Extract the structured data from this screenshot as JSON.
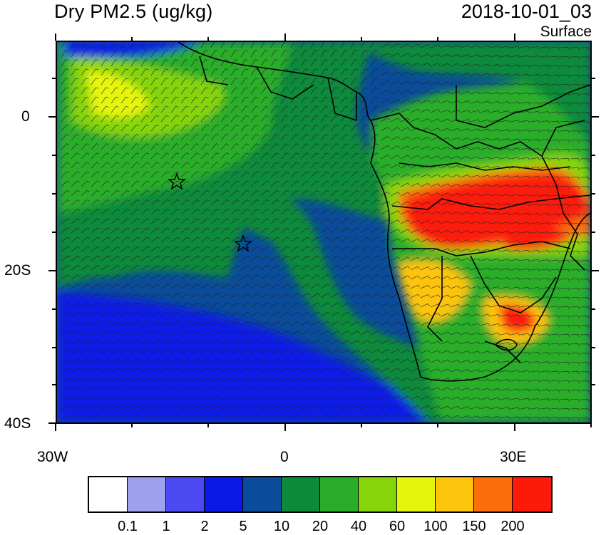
{
  "title": "Dry PM2.5 (ug/kg)",
  "datetime": "2018-10-01_03",
  "level": "Surface",
  "axes": {
    "lat_labels": [
      "0",
      "20S",
      "40S"
    ],
    "lon_labels": [
      "30W",
      "0",
      "30E"
    ]
  },
  "markers": [
    "star",
    "star"
  ],
  "colorbar": {
    "colors": [
      "#ffffff",
      "#a0a0f0",
      "#4a4af0",
      "#0a1ae6",
      "#0a4c9a",
      "#0a8a3a",
      "#2aae2a",
      "#86d40a",
      "#e6f50a",
      "#fcc40a",
      "#fc6e0a",
      "#fc1a0a"
    ],
    "labels": [
      "0.1",
      "1",
      "2",
      "5",
      "10",
      "20",
      "40",
      "60",
      "100",
      "150",
      "200"
    ]
  },
  "colors": {
    "land_border": "#000000",
    "wind_barb": "#222222"
  }
}
